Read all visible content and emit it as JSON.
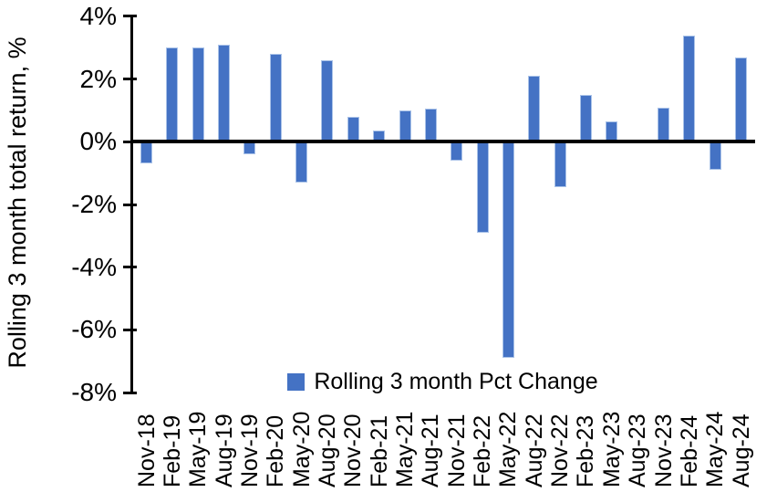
{
  "chart_data": {
    "type": "bar",
    "title": "",
    "xlabel": "",
    "ylabel": "Rolling 3 month total return, %",
    "ylim": [
      -8,
      4
    ],
    "ytick_step": 2,
    "yticks": [
      4,
      2,
      0,
      -2,
      -4,
      -6,
      -8
    ],
    "ytick_labels": [
      "4%",
      "2%",
      "0%",
      "-2%",
      "-4%",
      "-6%",
      "-8%"
    ],
    "grid": false,
    "legend_position": "bottom-center",
    "categories": [
      "Nov-18",
      "Feb-19",
      "May-19",
      "Aug-19",
      "Nov-19",
      "Feb-20",
      "May-20",
      "Aug-20",
      "Nov-20",
      "Feb-21",
      "May-21",
      "Aug-21",
      "Nov-21",
      "Feb-22",
      "May-22",
      "Aug-22",
      "Nov-22",
      "Feb-23",
      "May-23",
      "Aug-23",
      "Nov-23",
      "Feb-24",
      "May-24",
      "Aug-24"
    ],
    "series": [
      {
        "name": "Rolling 3 month Pct Change",
        "values": [
          -0.7,
          3.0,
          3.0,
          3.1,
          -0.4,
          2.8,
          -1.3,
          2.6,
          0.8,
          0.35,
          1.0,
          1.05,
          -0.6,
          -2.9,
          -6.9,
          2.1,
          -1.45,
          1.5,
          0.65,
          0.0,
          1.1,
          3.4,
          -0.9,
          2.7
        ]
      }
    ],
    "colors": {
      "bar_fill": "#4472C4",
      "bar_border": "#A9C2E8",
      "axis": "#000000",
      "text": "#000000",
      "background": "#FFFFFF"
    }
  },
  "legend": {
    "label": "Rolling 3 month Pct Change"
  },
  "axes": {
    "y_title": "Rolling 3 month total return, %"
  }
}
